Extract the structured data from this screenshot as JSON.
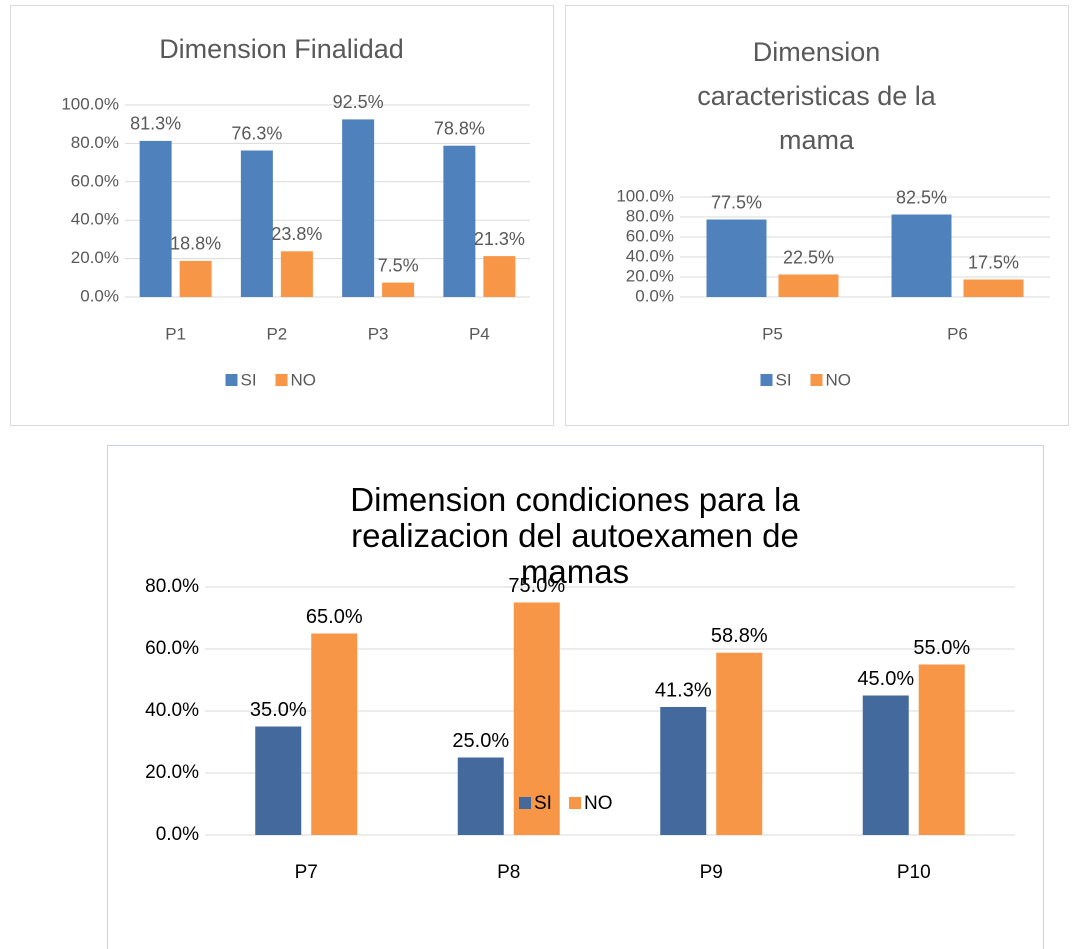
{
  "chart_data": [
    {
      "type": "bar",
      "title": "Dimension Finalidad",
      "categories": [
        "P1",
        "P2",
        "P3",
        "P4"
      ],
      "series": [
        {
          "name": "SI",
          "color": "#4f81bd",
          "values": [
            81.3,
            76.3,
            92.5,
            78.8
          ],
          "value_labels": [
            "81.3%",
            "76.3%",
            "92.5%",
            "78.8%"
          ]
        },
        {
          "name": "NO",
          "color": "#f79646",
          "values": [
            18.8,
            23.8,
            7.5,
            21.3
          ],
          "value_labels": [
            "18.8%",
            "23.8%",
            "7.5%",
            "21.3%"
          ]
        }
      ],
      "ylim": [
        0,
        100
      ],
      "yticks": [
        {
          "value": 0,
          "label": "0.0%"
        },
        {
          "value": 20,
          "label": "20.0%"
        },
        {
          "value": 40,
          "label": "40.0%"
        },
        {
          "value": 60,
          "label": "60.0%"
        },
        {
          "value": 80,
          "label": "80.0%"
        },
        {
          "value": 100,
          "label": "100.0%"
        }
      ],
      "grid": true,
      "legend": "bottom"
    },
    {
      "type": "bar",
      "title": "Dimension caracteristicas de la mama",
      "categories": [
        "P5",
        "P6"
      ],
      "series": [
        {
          "name": "SI",
          "color": "#4f81bd",
          "values": [
            77.5,
            82.5
          ],
          "value_labels": [
            "77.5%",
            "82.5%"
          ]
        },
        {
          "name": "NO",
          "color": "#f79646",
          "values": [
            22.5,
            17.5
          ],
          "value_labels": [
            "22.5%",
            "17.5%"
          ]
        }
      ],
      "ylim": [
        0,
        100
      ],
      "yticks": [
        {
          "value": 0,
          "label": "0.0%"
        },
        {
          "value": 20,
          "label": "20.0%"
        },
        {
          "value": 40,
          "label": "40.0%"
        },
        {
          "value": 60,
          "label": "60.0%"
        },
        {
          "value": 80,
          "label": "80.0%"
        },
        {
          "value": 100,
          "label": "100.0%"
        }
      ],
      "grid": true,
      "legend": "bottom"
    },
    {
      "type": "bar",
      "title": "Dimension condiciones para la realizacion del autoexamen de mamas",
      "categories": [
        "P7",
        "P8",
        "P9",
        "P10"
      ],
      "series": [
        {
          "name": "SI",
          "color": "#44699d",
          "values": [
            35.0,
            25.0,
            41.3,
            45.0
          ],
          "value_labels": [
            "35.0%",
            "25.0%",
            "41.3%",
            "45.0%"
          ]
        },
        {
          "name": "NO",
          "color": "#f79646",
          "values": [
            65.0,
            75.0,
            58.8,
            55.0
          ],
          "value_labels": [
            "65.0%",
            "75.0%",
            "58.8%",
            "55.0%"
          ]
        }
      ],
      "ylim": [
        0,
        80
      ],
      "yticks": [
        {
          "value": 0,
          "label": "0.0%"
        },
        {
          "value": 20,
          "label": "20.0%"
        },
        {
          "value": 40,
          "label": "40.0%"
        },
        {
          "value": 60,
          "label": "60.0%"
        },
        {
          "value": 80,
          "label": "80.0%"
        }
      ],
      "grid": true,
      "legend": "bottom"
    }
  ]
}
